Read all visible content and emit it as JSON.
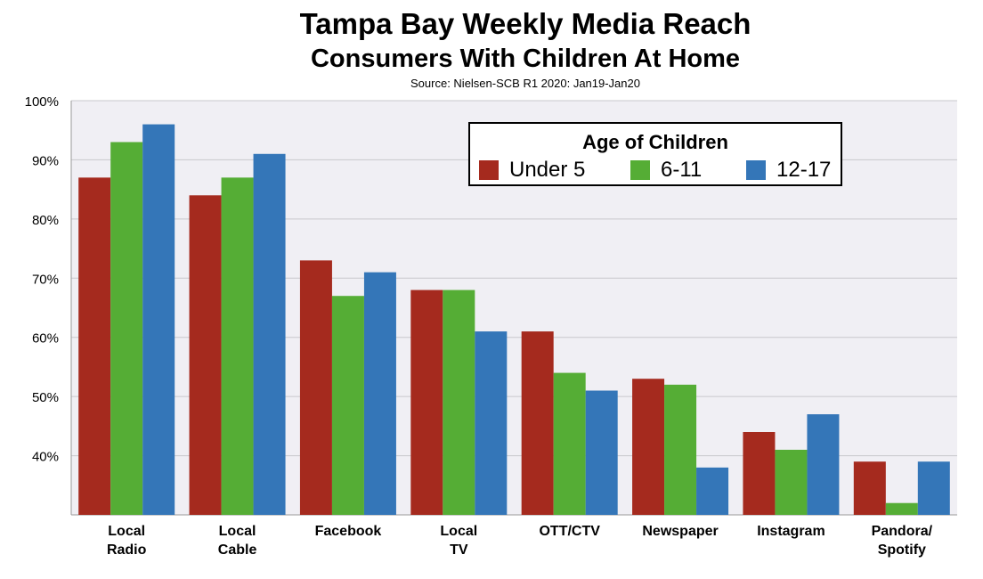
{
  "titles": {
    "main": "Tampa Bay Weekly Media Reach",
    "sub": "Consumers With Children At Home",
    "source": "Source: Nielsen-SCB R1 2020: Jan19-Jan20"
  },
  "colors": {
    "plot_bg": "#f0eff4",
    "grid": "#c8c8cc",
    "series": [
      "#a52a1e",
      "#55ad35",
      "#3476b8"
    ]
  },
  "legend": {
    "title": "Age of Children",
    "items": [
      "Under 5",
      "6-11",
      "12-17"
    ],
    "placement": "top-right"
  },
  "chart_data": {
    "type": "bar",
    "title": "Tampa Bay Weekly Media Reach",
    "subtitle": "Consumers With Children At Home",
    "categories": [
      [
        "Local",
        "Radio"
      ],
      [
        "Local",
        "Cable"
      ],
      [
        "Facebook"
      ],
      [
        "Local",
        "TV"
      ],
      [
        "OTT/CTV"
      ],
      [
        "Newspaper"
      ],
      [
        "Instagram"
      ],
      [
        "Pandora/",
        "Spotify"
      ]
    ],
    "series": [
      {
        "name": "Under 5",
        "values": [
          87,
          84,
          73,
          68,
          61,
          53,
          44,
          39
        ]
      },
      {
        "name": "6-11",
        "values": [
          93,
          87,
          67,
          68,
          54,
          52,
          41,
          32
        ]
      },
      {
        "name": "12-17",
        "values": [
          96,
          91,
          71,
          61,
          51,
          38,
          47,
          39
        ]
      }
    ],
    "ylim": [
      30,
      100
    ],
    "yticks": [
      40,
      50,
      60,
      70,
      80,
      90,
      100
    ],
    "ytick_labels": [
      "40%",
      "50%",
      "60%",
      "70%",
      "80%",
      "90%",
      "100%"
    ],
    "grid": true,
    "xlabel": "",
    "ylabel": ""
  }
}
